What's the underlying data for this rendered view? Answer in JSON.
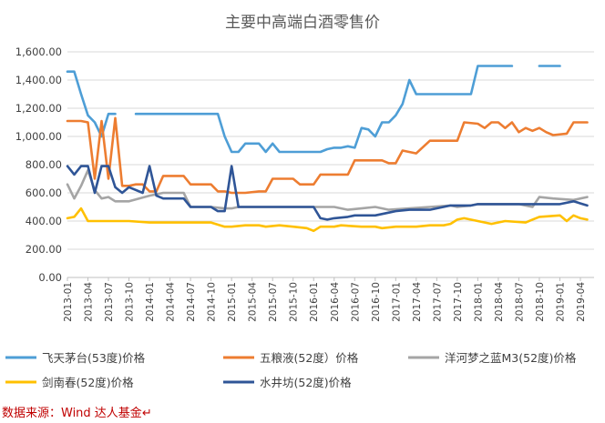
{
  "chart_data": {
    "type": "line",
    "title": "主要中高端白酒零售价",
    "xlabel": "",
    "ylabel": "",
    "ylim": [
      0,
      1600
    ],
    "yticks": [
      "0.00",
      "200.00",
      "400.00",
      "600.00",
      "800.00",
      "1,000.00",
      "1,200.00",
      "1,400.00",
      "1,600.00"
    ],
    "x_tick_labels": [
      "2013-01",
      "2013-04",
      "2013-07",
      "2013-10",
      "2014-01",
      "2014-04",
      "2014-07",
      "2014-10",
      "2015-01",
      "2015-04",
      "2015-07",
      "2015-10",
      "2016-01",
      "2016-04",
      "2016-07",
      "2016-10",
      "2017-01",
      "2017-04",
      "2017-07",
      "2017-10",
      "2018-01",
      "2018-04",
      "2018-07",
      "2018-10",
      "2019-01",
      "2019-04"
    ],
    "x_start": "2013-01",
    "x_end": "2019-06",
    "grid": "horizontal",
    "legend_position": "bottom",
    "series": [
      {
        "name": "飞天茅台(53度)价格",
        "color": "#4e9ed6",
        "points": [
          [
            "2013-01",
            1460
          ],
          [
            "2013-02",
            1460
          ],
          [
            "2013-03",
            1300
          ],
          [
            "2013-04",
            1150
          ],
          [
            "2013-05",
            1100
          ],
          [
            "2013-06",
            1000
          ],
          [
            "2013-07",
            1160
          ],
          [
            "2013-08",
            1160
          ],
          null,
          [
            "2013-11",
            1160
          ],
          [
            "2014-01",
            1160
          ],
          [
            "2014-06",
            1160
          ],
          [
            "2014-10",
            1160
          ],
          [
            "2014-11",
            1160
          ],
          [
            "2014-12",
            1000
          ],
          [
            "2015-01",
            890
          ],
          [
            "2015-02",
            890
          ],
          [
            "2015-03",
            950
          ],
          [
            "2015-04",
            950
          ],
          [
            "2015-05",
            950
          ],
          [
            "2015-06",
            890
          ],
          [
            "2015-07",
            950
          ],
          [
            "2015-08",
            890
          ],
          [
            "2015-10",
            890
          ],
          [
            "2015-12",
            890
          ],
          [
            "2016-02",
            890
          ],
          [
            "2016-03",
            910
          ],
          [
            "2016-04",
            920
          ],
          [
            "2016-05",
            920
          ],
          [
            "2016-06",
            930
          ],
          [
            "2016-07",
            920
          ],
          [
            "2016-08",
            1060
          ],
          [
            "2016-09",
            1050
          ],
          [
            "2016-10",
            1000
          ],
          [
            "2016-11",
            1100
          ],
          [
            "2016-12",
            1100
          ],
          [
            "2017-01",
            1150
          ],
          [
            "2017-02",
            1230
          ],
          [
            "2017-03",
            1400
          ],
          [
            "2017-04",
            1300
          ],
          [
            "2017-06",
            1300
          ],
          [
            "2017-08",
            1300
          ],
          [
            "2017-10",
            1300
          ],
          [
            "2017-12",
            1300
          ],
          [
            "2018-01",
            1500
          ],
          [
            "2018-03",
            1500
          ],
          [
            "2018-05",
            1500
          ],
          [
            "2018-06",
            1500
          ],
          null,
          [
            "2018-08",
            1500
          ],
          null,
          [
            "2018-10",
            1500
          ],
          [
            "2019-01",
            1500
          ]
        ]
      },
      {
        "name": "五粮液(52度）价格",
        "color": "#ed7d31",
        "points": [
          [
            "2013-01",
            1110
          ],
          [
            "2013-03",
            1110
          ],
          [
            "2013-04",
            1100
          ],
          [
            "2013-05",
            700
          ],
          [
            "2013-06",
            1110
          ],
          [
            "2013-07",
            700
          ],
          [
            "2013-08",
            1130
          ],
          [
            "2013-09",
            650
          ],
          [
            "2013-10",
            650
          ],
          [
            "2013-11",
            660
          ],
          [
            "2013-12",
            660
          ],
          [
            "2014-01",
            610
          ],
          [
            "2014-02",
            610
          ],
          [
            "2014-03",
            720
          ],
          [
            "2014-04",
            720
          ],
          [
            "2014-06",
            720
          ],
          [
            "2014-07",
            660
          ],
          [
            "2014-09",
            660
          ],
          [
            "2014-10",
            660
          ],
          [
            "2014-11",
            610
          ],
          [
            "2014-12",
            610
          ],
          [
            "2015-01",
            600
          ],
          [
            "2015-03",
            600
          ],
          [
            "2015-05",
            610
          ],
          [
            "2015-06",
            610
          ],
          [
            "2015-07",
            700
          ],
          [
            "2015-10",
            700
          ],
          [
            "2015-11",
            660
          ],
          [
            "2016-01",
            660
          ],
          [
            "2016-02",
            730
          ],
          [
            "2016-06",
            730
          ],
          [
            "2016-07",
            830
          ],
          [
            "2016-11",
            830
          ],
          [
            "2016-12",
            810
          ],
          [
            "2017-01",
            810
          ],
          [
            "2017-02",
            900
          ],
          [
            "2017-04",
            880
          ],
          [
            "2017-06",
            970
          ],
          [
            "2017-10",
            970
          ],
          [
            "2017-11",
            1100
          ],
          [
            "2018-01",
            1090
          ],
          [
            "2018-02",
            1060
          ],
          [
            "2018-03",
            1100
          ],
          [
            "2018-04",
            1100
          ],
          [
            "2018-05",
            1060
          ],
          [
            "2018-06",
            1100
          ],
          [
            "2018-07",
            1030
          ],
          [
            "2018-08",
            1060
          ],
          [
            "2018-09",
            1040
          ],
          [
            "2018-10",
            1060
          ],
          [
            "2018-11",
            1030
          ],
          [
            "2018-12",
            1010
          ],
          [
            "2019-02",
            1020
          ],
          [
            "2019-03",
            1100
          ],
          [
            "2019-05",
            1100
          ]
        ]
      },
      {
        "name": "洋河梦之蓝M3(52度)价格",
        "color": "#a5a5a5",
        "points": [
          [
            "2013-01",
            660
          ],
          [
            "2013-02",
            560
          ],
          [
            "2013-03",
            650
          ],
          [
            "2013-04",
            760
          ],
          [
            "2013-05",
            620
          ],
          [
            "2013-06",
            560
          ],
          [
            "2013-07",
            570
          ],
          [
            "2013-08",
            540
          ],
          [
            "2013-10",
            540
          ],
          [
            "2014-01",
            580
          ],
          [
            "2014-03",
            600
          ],
          [
            "2014-06",
            600
          ],
          [
            "2014-07",
            500
          ],
          [
            "2014-10",
            500
          ],
          [
            "2014-12",
            490
          ],
          [
            "2015-01",
            490
          ],
          [
            "2015-02",
            500
          ],
          [
            "2015-04",
            500
          ],
          [
            "2015-10",
            500
          ],
          [
            "2016-01",
            500
          ],
          [
            "2016-04",
            500
          ],
          [
            "2016-06",
            480
          ],
          [
            "2016-08",
            490
          ],
          [
            "2016-10",
            500
          ],
          [
            "2016-12",
            480
          ],
          [
            "2017-03",
            490
          ],
          [
            "2017-06",
            500
          ],
          [
            "2017-09",
            510
          ],
          [
            "2017-10",
            500
          ],
          [
            "2017-12",
            510
          ],
          [
            "2018-01",
            520
          ],
          [
            "2018-04",
            520
          ],
          [
            "2018-07",
            520
          ],
          [
            "2018-09",
            500
          ],
          [
            "2018-10",
            570
          ],
          [
            "2018-12",
            560
          ],
          [
            "2019-03",
            550
          ],
          [
            "2019-05",
            570
          ]
        ]
      },
      {
        "name": "剑南春(52度)价格",
        "color": "#ffc000",
        "points": [
          [
            "2013-01",
            420
          ],
          [
            "2013-02",
            430
          ],
          [
            "2013-03",
            490
          ],
          [
            "2013-04",
            400
          ],
          [
            "2013-05",
            400
          ],
          [
            "2013-10",
            400
          ],
          [
            "2014-01",
            390
          ],
          [
            "2014-06",
            390
          ],
          [
            "2014-10",
            390
          ],
          [
            "2014-12",
            360
          ],
          [
            "2015-01",
            360
          ],
          [
            "2015-03",
            370
          ],
          [
            "2015-05",
            370
          ],
          [
            "2015-06",
            360
          ],
          [
            "2015-08",
            370
          ],
          [
            "2015-10",
            360
          ],
          [
            "2015-12",
            350
          ],
          [
            "2016-01",
            330
          ],
          [
            "2016-02",
            360
          ],
          [
            "2016-04",
            360
          ],
          [
            "2016-05",
            370
          ],
          [
            "2016-08",
            360
          ],
          [
            "2016-10",
            360
          ],
          [
            "2016-11",
            350
          ],
          [
            "2017-01",
            360
          ],
          [
            "2017-04",
            360
          ],
          [
            "2017-06",
            370
          ],
          [
            "2017-08",
            370
          ],
          [
            "2017-09",
            380
          ],
          [
            "2017-10",
            410
          ],
          [
            "2017-11",
            420
          ],
          [
            "2018-01",
            400
          ],
          [
            "2018-03",
            380
          ],
          [
            "2018-05",
            400
          ],
          [
            "2018-08",
            390
          ],
          [
            "2018-09",
            410
          ],
          [
            "2018-10",
            430
          ],
          [
            "2019-01",
            440
          ],
          [
            "2019-02",
            400
          ],
          [
            "2019-03",
            440
          ],
          [
            "2019-04",
            420
          ],
          [
            "2019-05",
            410
          ]
        ]
      },
      {
        "name": "水井坊(52度)价格",
        "color": "#2f5597",
        "points": [
          [
            "2013-01",
            790
          ],
          [
            "2013-02",
            730
          ],
          [
            "2013-03",
            790
          ],
          [
            "2013-04",
            790
          ],
          [
            "2013-05",
            600
          ],
          [
            "2013-06",
            790
          ],
          [
            "2013-07",
            790
          ],
          [
            "2013-08",
            640
          ],
          [
            "2013-09",
            600
          ],
          [
            "2013-10",
            640
          ],
          [
            "2013-12",
            600
          ],
          [
            "2014-01",
            790
          ],
          [
            "2014-02",
            580
          ],
          [
            "2014-03",
            560
          ],
          [
            "2014-06",
            560
          ],
          [
            "2014-07",
            500
          ],
          [
            "2014-10",
            500
          ],
          [
            "2014-11",
            470
          ],
          [
            "2014-12",
            470
          ],
          [
            "2015-01",
            790
          ],
          [
            "2015-02",
            500
          ],
          [
            "2015-06",
            500
          ],
          [
            "2015-10",
            500
          ],
          [
            "2016-01",
            500
          ],
          [
            "2016-02",
            420
          ],
          [
            "2016-03",
            410
          ],
          [
            "2016-04",
            420
          ],
          [
            "2016-06",
            430
          ],
          [
            "2016-07",
            440
          ],
          [
            "2016-10",
            440
          ],
          [
            "2016-12",
            460
          ],
          [
            "2017-01",
            470
          ],
          [
            "2017-03",
            480
          ],
          [
            "2017-06",
            480
          ],
          [
            "2017-09",
            510
          ],
          [
            "2017-12",
            510
          ],
          [
            "2018-01",
            520
          ],
          [
            "2018-04",
            520
          ],
          [
            "2018-07",
            520
          ],
          [
            "2018-10",
            520
          ],
          [
            "2019-01",
            520
          ],
          [
            "2019-03",
            540
          ],
          [
            "2019-05",
            510
          ]
        ]
      }
    ]
  },
  "caption": {
    "text": "数据来源：Wind 达人基金",
    "mark": "↵"
  }
}
